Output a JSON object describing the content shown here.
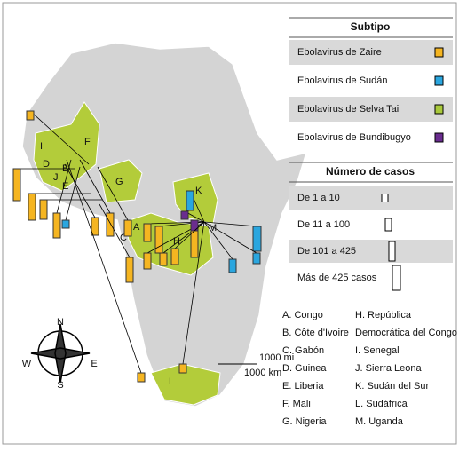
{
  "legend_subtype": {
    "title": "Subtipo",
    "items": [
      {
        "label": "Ebolavirus de Zaire",
        "color": "#f5b521"
      },
      {
        "label": "Ebolavirus de Sudán",
        "color": "#2aa6df"
      },
      {
        "label": "Ebolavirus de Selva Tai",
        "color": "#a9c93b"
      },
      {
        "label": "Ebolavirus de Bundibugyo",
        "color": "#6a2c8f"
      }
    ]
  },
  "legend_cases": {
    "title": "Número de casos",
    "items": [
      "De 1 a 10",
      "De 11 a 100",
      "De 101 a 425",
      "Más de 425 casos"
    ]
  },
  "map_labels": [
    "A",
    "B",
    "C",
    "D",
    "E",
    "F",
    "G",
    "H",
    "I",
    "J",
    "K",
    "L",
    "M"
  ],
  "compass": [
    "N",
    "S",
    "E",
    "W"
  ],
  "scale": [
    "1000 mi",
    "1000 km"
  ],
  "country_key": [
    "A. Congo",
    "B. Côte d'Ivoire",
    "C. Gabón",
    "D. Guinea",
    "E. Liberia",
    "F. Mali",
    "G. Nigeria",
    "H. República",
    "Democrática del Congo",
    "I. Senegal",
    "J. Sierra Leona",
    "K. Sudán del Sur",
    "L. Sudáfrica",
    "M. Uganda"
  ]
}
